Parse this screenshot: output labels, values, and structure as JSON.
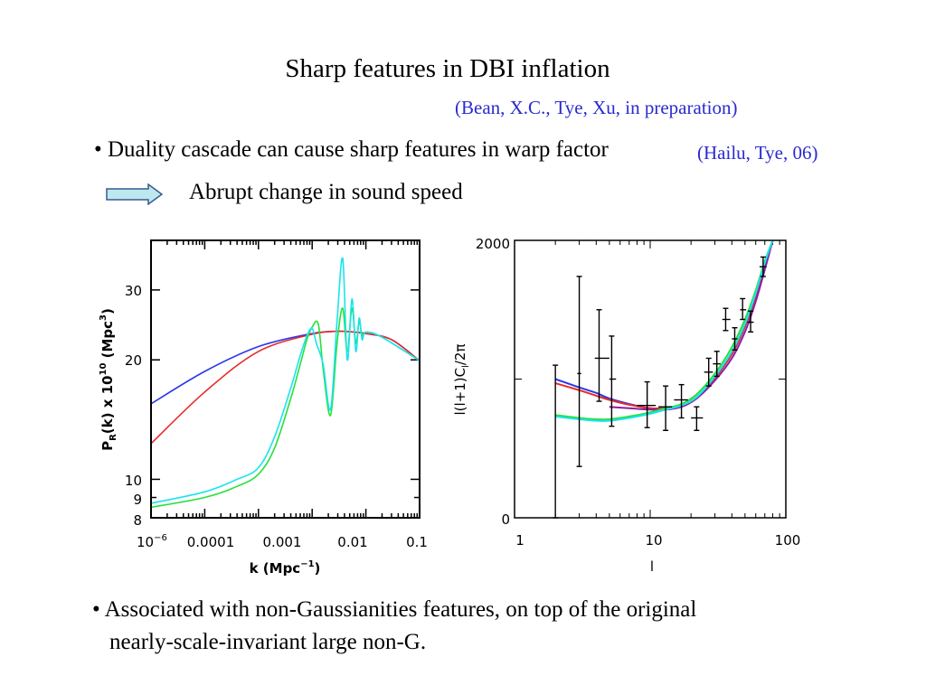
{
  "title": "Sharp features in DBI inflation",
  "citation_main": "(Bean, X.C., Tye, Xu, in preparation)",
  "bullet1": "• Duality cascade can cause sharp features in warp factor",
  "citation_bullet1": "(Hailu, Tye, 06)",
  "arrow_icon": "right-arrow-icon",
  "arrow_text": "Abrupt change in sound speed",
  "bullet2_line1": "• Associated with non-Gaussianities features, on top of the original",
  "bullet2_line2": "nearly-scale-invariant large non-G.",
  "colors": {
    "citation": "#2a2ad0",
    "blue": "#2a37e8",
    "red": "#e82a2a",
    "green": "#27e03a",
    "cyan": "#19e4ee",
    "purple": "#8a1fa6",
    "arrow_fill": "#bde8f0"
  },
  "chart_data": [
    {
      "type": "line",
      "xscale": "log",
      "yscale": "log",
      "xlim": [
        1e-06,
        0.1
      ],
      "ylim": [
        8,
        40
      ],
      "xlabel": "k (Mpc^-1)",
      "ylabel": "P_R(k) x 10^10 (Mpc^3)",
      "x_tick_labels": [
        "10^-6",
        "0.0001",
        "0.001",
        "0.01",
        "0.1"
      ],
      "y_tick_labels": [
        "8",
        "9",
        "10",
        "20",
        "30"
      ],
      "series": [
        {
          "color": "#2a37e8",
          "x": [
            1e-06,
            1e-05,
            0.0001,
            0.001,
            0.003,
            0.006,
            0.01,
            0.03,
            0.1
          ],
          "y": [
            15.5,
            18.7,
            21.6,
            23.3,
            23.6,
            23.5,
            23.3,
            22.5,
            19.9
          ]
        },
        {
          "color": "#e82a2a",
          "x": [
            1e-06,
            1e-05,
            0.0001,
            0.001,
            0.003,
            0.006,
            0.01,
            0.03,
            0.1
          ],
          "y": [
            12.3,
            16.6,
            21.0,
            23.2,
            23.6,
            23.5,
            23.3,
            22.5,
            19.9
          ]
        },
        {
          "color": "#27e03a",
          "x": [
            1e-06,
            1e-05,
            4e-05,
            0.0001,
            0.0002,
            0.0004,
            0.0006,
            0.0008,
            0.001,
            0.0013,
            0.0016,
            0.0022,
            0.0029,
            0.0037,
            0.0045,
            0.0055,
            0.0065,
            0.0075,
            0.0085,
            0.01,
            0.02,
            0.1
          ],
          "y": [
            8.5,
            9.0,
            9.6,
            10.3,
            12.0,
            16.0,
            19.5,
            22.5,
            24.2,
            24.6,
            19.0,
            14.5,
            22.0,
            27.0,
            21.0,
            27.0,
            22.0,
            25.0,
            23.0,
            23.5,
            22.8,
            19.9
          ]
        },
        {
          "color": "#19e4ee",
          "x": [
            1e-06,
            1e-05,
            4e-05,
            0.0001,
            0.0002,
            0.0004,
            0.0006,
            0.0008,
            0.001,
            0.0012,
            0.0016,
            0.0022,
            0.0029,
            0.0037,
            0.0045,
            0.0055,
            0.0065,
            0.0075,
            0.0085,
            0.01,
            0.02,
            0.1
          ],
          "y": [
            8.7,
            9.3,
            10.0,
            10.7,
            12.8,
            17.0,
            20.5,
            23.0,
            24.0,
            22.0,
            19.5,
            15.0,
            25.0,
            36.0,
            20.0,
            28.5,
            21.0,
            25.5,
            22.5,
            23.5,
            22.8,
            19.9
          ]
        }
      ]
    },
    {
      "type": "line",
      "xscale": "log",
      "xlim": [
        1,
        100
      ],
      "ylim": [
        0,
        2000
      ],
      "xlabel": "l",
      "ylabel": "l(l+1)C_l/2π",
      "x_tick_labels": [
        "1",
        "10",
        "100"
      ],
      "y_tick_labels": [
        "0",
        "2000"
      ],
      "series": [
        {
          "color": "#2a37e8",
          "x": [
            2,
            3,
            4,
            5,
            7,
            10,
            13,
            17,
            22,
            30,
            40,
            50,
            60,
            70,
            80
          ],
          "y": [
            1000,
            940,
            900,
            860,
            820,
            790,
            790,
            810,
            870,
            1010,
            1180,
            1380,
            1600,
            1820,
            2000
          ]
        },
        {
          "color": "#e82a2a",
          "x": [
            2,
            3,
            4,
            5,
            7,
            10,
            13,
            17,
            22,
            30,
            40,
            50,
            60,
            70,
            80
          ],
          "y": [
            970,
            920,
            880,
            850,
            815,
            790,
            790,
            810,
            870,
            1010,
            1180,
            1380,
            1600,
            1820,
            2000
          ]
        },
        {
          "color": "#8a1fa6",
          "x": [
            5,
            7,
            10,
            13,
            17,
            22,
            30,
            40,
            50,
            60,
            70,
            80
          ],
          "y": [
            800,
            790,
            780,
            780,
            800,
            860,
            990,
            1150,
            1340,
            1560,
            1790,
            2000
          ]
        },
        {
          "color": "#27e03a",
          "x": [
            2,
            3,
            4,
            5,
            7,
            10,
            13,
            17,
            22,
            30,
            40,
            50,
            60,
            70,
            80
          ],
          "y": [
            740,
            720,
            710,
            710,
            730,
            760,
            790,
            820,
            890,
            1040,
            1230,
            1430,
            1640,
            1850,
            2000
          ]
        },
        {
          "color": "#19e4ee",
          "x": [
            2,
            3,
            4,
            5,
            7,
            10,
            13,
            17,
            22,
            30,
            40,
            50,
            60,
            70,
            80
          ],
          "y": [
            730,
            710,
            700,
            700,
            720,
            750,
            780,
            810,
            870,
            1020,
            1200,
            1400,
            1620,
            1840,
            2000
          ]
        }
      ],
      "error_bars": [
        {
          "x": 2,
          "y": 1100,
          "ylo": 0,
          "yhi": 1100,
          "xlo": 2,
          "xhi": 2
        },
        {
          "x": 3,
          "y": 1040,
          "ylo": 370,
          "yhi": 1740,
          "xlo": 2.9,
          "xhi": 3.1
        },
        {
          "x": 4.2,
          "y": 1150,
          "ylo": 840,
          "yhi": 1500,
          "xlo": 3.9,
          "xhi": 5.0
        },
        {
          "x": 5.2,
          "y": 1000,
          "ylo": 660,
          "yhi": 1310,
          "xlo": 5.0,
          "xhi": 5.6
        },
        {
          "x": 9.5,
          "y": 810,
          "ylo": 650,
          "yhi": 980,
          "xlo": 8.0,
          "xhi": 11.0
        },
        {
          "x": 13,
          "y": 800,
          "ylo": 630,
          "yhi": 950,
          "xlo": 11.5,
          "xhi": 14.5
        },
        {
          "x": 17,
          "y": 850,
          "ylo": 720,
          "yhi": 960,
          "xlo": 15.0,
          "xhi": 19.0
        },
        {
          "x": 22,
          "y": 720,
          "ylo": 630,
          "yhi": 800,
          "xlo": 20.0,
          "xhi": 24.5
        },
        {
          "x": 27,
          "y": 1050,
          "ylo": 950,
          "yhi": 1150,
          "xlo": 25.0,
          "xhi": 29.0
        },
        {
          "x": 31,
          "y": 1110,
          "ylo": 1020,
          "yhi": 1200,
          "xlo": 29.0,
          "xhi": 33.0
        },
        {
          "x": 36,
          "y": 1430,
          "ylo": 1350,
          "yhi": 1510,
          "xlo": 34.0,
          "xhi": 39.0
        },
        {
          "x": 42,
          "y": 1290,
          "ylo": 1210,
          "yhi": 1370,
          "xlo": 40.0,
          "xhi": 44.0
        },
        {
          "x": 48,
          "y": 1500,
          "ylo": 1430,
          "yhi": 1580,
          "xlo": 46.0,
          "xhi": 51.0
        },
        {
          "x": 55,
          "y": 1410,
          "ylo": 1340,
          "yhi": 1490,
          "xlo": 52.0,
          "xhi": 58.0
        },
        {
          "x": 68,
          "y": 1810,
          "ylo": 1740,
          "yhi": 1880,
          "xlo": 64.0,
          "xhi": 72.0
        }
      ]
    }
  ]
}
